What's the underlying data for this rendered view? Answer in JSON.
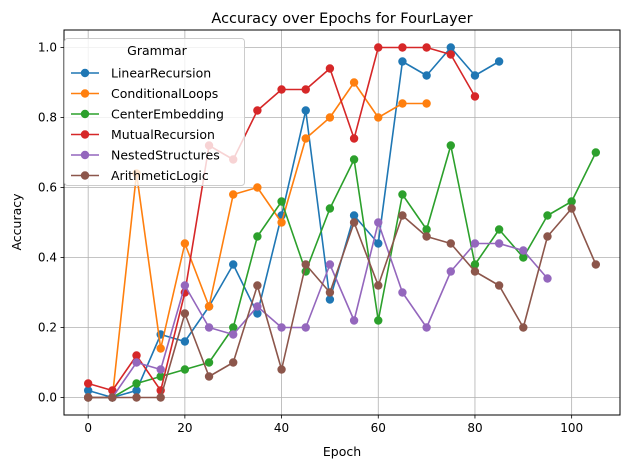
{
  "chart_data": {
    "type": "line",
    "title": "Accuracy over Epochs for FourLayer",
    "xlabel": "Epoch",
    "ylabel": "Accuracy",
    "xlim": [
      -5,
      110
    ],
    "ylim": [
      -0.05,
      1.05
    ],
    "xticks": [
      0,
      20,
      40,
      60,
      80,
      100
    ],
    "yticks": [
      0.0,
      0.2,
      0.4,
      0.6,
      0.8,
      1.0
    ],
    "xtick_labels": [
      "0",
      "20",
      "40",
      "60",
      "80",
      "100"
    ],
    "ytick_labels": [
      "0.0",
      "0.2",
      "0.4",
      "0.6",
      "0.8",
      "1.0"
    ],
    "grid": true,
    "legend": {
      "title": "Grammar",
      "placement": "upper-left"
    },
    "series": [
      {
        "name": "LinearRecursion",
        "color": "#1f77b4",
        "x": [
          0,
          5,
          10,
          15,
          20,
          25,
          30,
          35,
          40,
          45,
          50,
          55,
          60,
          65,
          70,
          75,
          80,
          85
        ],
        "y": [
          0.02,
          0.0,
          0.02,
          0.18,
          0.16,
          0.26,
          0.38,
          0.24,
          0.52,
          0.82,
          0.28,
          0.52,
          0.44,
          0.96,
          0.92,
          1.0,
          0.92,
          0.96
        ]
      },
      {
        "name": "ConditionalLoops",
        "color": "#ff7f0e",
        "x": [
          0,
          5,
          10,
          15,
          20,
          25,
          30,
          35,
          40,
          45,
          50,
          55,
          60,
          65,
          70
        ],
        "y": [
          0.0,
          0.0,
          0.64,
          0.14,
          0.44,
          0.26,
          0.58,
          0.6,
          0.5,
          0.74,
          0.8,
          0.9,
          0.8,
          0.84,
          0.84
        ]
      },
      {
        "name": "CenterEmbedding",
        "color": "#2ca02c",
        "x": [
          0,
          5,
          10,
          15,
          20,
          25,
          30,
          35,
          40,
          45,
          50,
          55,
          60,
          65,
          70,
          75,
          80,
          85,
          90,
          95,
          100,
          105
        ],
        "y": [
          0.0,
          0.0,
          0.04,
          0.06,
          0.08,
          0.1,
          0.2,
          0.46,
          0.56,
          0.36,
          0.54,
          0.68,
          0.22,
          0.58,
          0.48,
          0.72,
          0.38,
          0.48,
          0.4,
          0.52,
          0.56,
          0.7
        ]
      },
      {
        "name": "MutualRecursion",
        "color": "#d62728",
        "x": [
          0,
          5,
          10,
          15,
          20,
          25,
          30,
          35,
          40,
          45,
          50,
          55,
          60,
          65,
          70,
          75,
          80
        ],
        "y": [
          0.04,
          0.02,
          0.12,
          0.02,
          0.3,
          0.72,
          0.68,
          0.82,
          0.88,
          0.88,
          0.94,
          0.74,
          1.0,
          1.0,
          1.0,
          0.98,
          0.86
        ]
      },
      {
        "name": "NestedStructures",
        "color": "#9467bd",
        "x": [
          0,
          5,
          10,
          15,
          20,
          25,
          30,
          35,
          40,
          45,
          50,
          55,
          60,
          65,
          70,
          75,
          80,
          85,
          90,
          95
        ],
        "y": [
          0.0,
          0.0,
          0.1,
          0.08,
          0.32,
          0.2,
          0.18,
          0.26,
          0.2,
          0.2,
          0.38,
          0.22,
          0.5,
          0.3,
          0.2,
          0.36,
          0.44,
          0.44,
          0.42,
          0.34
        ]
      },
      {
        "name": "ArithmeticLogic",
        "color": "#8c564b",
        "x": [
          0,
          5,
          10,
          15,
          20,
          25,
          30,
          35,
          40,
          45,
          50,
          55,
          60,
          65,
          70,
          75,
          80,
          85,
          90,
          95,
          100,
          105
        ],
        "y": [
          0.0,
          0.0,
          0.0,
          0.0,
          0.24,
          0.06,
          0.1,
          0.32,
          0.08,
          0.38,
          0.3,
          0.5,
          0.32,
          0.52,
          0.46,
          0.44,
          0.36,
          0.32,
          0.2,
          0.46,
          0.54,
          0.38
        ]
      }
    ]
  }
}
